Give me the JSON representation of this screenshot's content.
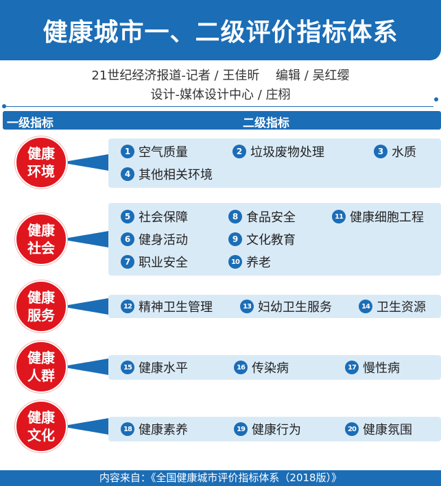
{
  "title": "健康城市一、二级评价指标体系",
  "byline": {
    "line1": "21世纪经济报道-记者 / 王佳昕　 编辑 / 吴红缨",
    "line2": "设计-媒体设计中心 / 庄栩"
  },
  "header": {
    "level1": "一级指标",
    "level2": "二级指标"
  },
  "colors": {
    "blue": "#1b6db6",
    "red": "#e0161e",
    "light_blue": "#d9eaf7"
  },
  "groups": [
    {
      "name": "健康\n环境",
      "items": [
        {
          "n": "1",
          "t": "空气质量"
        },
        {
          "n": "2",
          "t": "垃圾废物处理"
        },
        {
          "n": "3",
          "t": "水质"
        },
        {
          "n": "4",
          "t": "其他相关环境"
        }
      ]
    },
    {
      "name": "健康\n社会",
      "items": [
        {
          "n": "5",
          "t": "社会保障"
        },
        {
          "n": "8",
          "t": "食品安全"
        },
        {
          "n": "11",
          "t": "健康细胞工程"
        },
        {
          "n": "6",
          "t": "健身活动"
        },
        {
          "n": "9",
          "t": "文化教育"
        },
        {
          "n": "7",
          "t": "职业安全"
        },
        {
          "n": "10",
          "t": "养老"
        }
      ]
    },
    {
      "name": "健康\n服务",
      "items": [
        {
          "n": "12",
          "t": "精神卫生管理"
        },
        {
          "n": "13",
          "t": "妇幼卫生服务"
        },
        {
          "n": "14",
          "t": "卫生资源"
        }
      ]
    },
    {
      "name": "健康\n人群",
      "items": [
        {
          "n": "15",
          "t": "健康水平"
        },
        {
          "n": "16",
          "t": "传染病"
        },
        {
          "n": "17",
          "t": "慢性病"
        }
      ]
    },
    {
      "name": "健康\n文化",
      "items": [
        {
          "n": "18",
          "t": "健康素养"
        },
        {
          "n": "19",
          "t": "健康行为"
        },
        {
          "n": "20",
          "t": "健康氛围"
        }
      ]
    }
  ],
  "footer": "内容来自：《全国健康城市评价指标体系（2018版）》"
}
